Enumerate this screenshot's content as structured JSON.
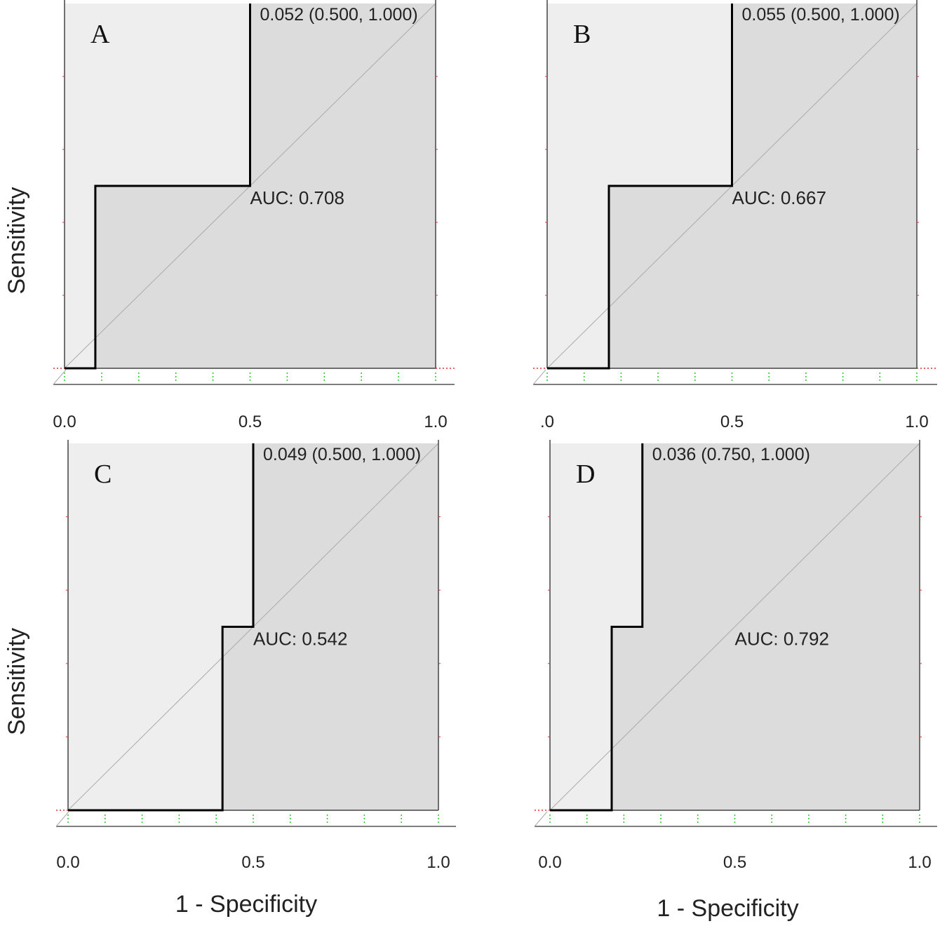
{
  "chart_data": [
    {
      "type": "line",
      "panel_label": "A",
      "auc_label": "AUC: 0.708",
      "point_label": "0.052 (0.500, 1.000)",
      "roc": {
        "x": [
          0,
          0.083,
          0.083,
          0.5,
          0.5
        ],
        "y": [
          0,
          0,
          0.5,
          0.5,
          1.0
        ]
      },
      "xlim": [
        0,
        1
      ],
      "ylim": [
        0,
        1
      ],
      "tick_labels": [
        "0.0",
        "0.5",
        "1.0"
      ],
      "xlabel": "",
      "ylabel": "Sensitivity",
      "grid": false
    },
    {
      "type": "line",
      "panel_label": "B",
      "auc_label": "AUC: 0.667",
      "point_label": "0.055 (0.500, 1.000)",
      "roc": {
        "x": [
          0,
          0.167,
          0.167,
          0.5,
          0.5
        ],
        "y": [
          0,
          0,
          0.5,
          0.5,
          1.0
        ]
      },
      "xlim": [
        0,
        1
      ],
      "ylim": [
        0,
        1
      ],
      "tick_labels": [
        ".0",
        "0.5",
        "1.0"
      ],
      "xlabel": "",
      "ylabel": "",
      "grid": false
    },
    {
      "type": "line",
      "panel_label": "C",
      "auc_label": "AUC: 0.542",
      "point_label": "0.049 (0.500, 1.000)",
      "roc": {
        "x": [
          0,
          0.417,
          0.417,
          0.5,
          0.5
        ],
        "y": [
          0,
          0,
          0.5,
          0.5,
          1.0
        ]
      },
      "xlim": [
        0,
        1
      ],
      "ylim": [
        0,
        1
      ],
      "tick_labels": [
        "0.0",
        "0.5",
        "1.0"
      ],
      "xlabel": "1 - Specificity",
      "ylabel": "Sensitivity",
      "grid": false
    },
    {
      "type": "line",
      "panel_label": "D",
      "auc_label": "AUC: 0.792",
      "point_label": "0.036 (0.750, 1.000)",
      "roc": {
        "x": [
          0,
          0.167,
          0.167,
          0.25,
          0.25
        ],
        "y": [
          0,
          0,
          0.5,
          0.5,
          1.0
        ]
      },
      "xlim": [
        0,
        1
      ],
      "ylim": [
        0,
        1
      ],
      "tick_labels": [
        "0.0",
        "0.5",
        "1.0"
      ],
      "xlabel": "1 - Specificity",
      "ylabel": "",
      "grid": false
    }
  ]
}
